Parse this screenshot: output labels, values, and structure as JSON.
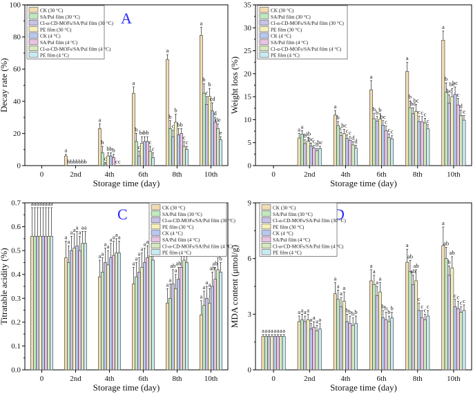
{
  "chart_data": [
    {
      "type": "bar",
      "panel_letter": "A",
      "ylabel": "Decay rate (%)",
      "xlabel": "Storage time (day)",
      "xticks": [
        "0",
        "2nd",
        "4th",
        "6th",
        "8th",
        "10th"
      ],
      "yticks": [
        "0",
        "20",
        "40",
        "60",
        "80",
        "100"
      ],
      "ylim": [
        0,
        100
      ],
      "legend_position": "top-left",
      "series": [
        {
          "name": "CK (30 °C)",
          "color": "#f2dcb3",
          "values": [
            0,
            6,
            23,
            45,
            66,
            81
          ],
          "errors": [
            0,
            1,
            3,
            4,
            3,
            5
          ],
          "letters": [
            "",
            "a",
            "a",
            "a",
            "a",
            "a"
          ]
        },
        {
          "name": "SA/Pul film (30 °C)",
          "color": "#bfe8bf",
          "values": [
            0,
            0,
            8,
            15,
            23,
            45
          ],
          "errors": [
            0,
            0,
            4,
            5,
            5,
            6
          ],
          "letters": [
            "",
            "b",
            "b",
            "b",
            "b",
            "b"
          ]
        },
        {
          "name": "Cl-α-CD-MOFs/SA/Pul film (30 °C)",
          "color": "#c8c3e6",
          "values": [
            0,
            0,
            1,
            6,
            18,
            38
          ],
          "errors": [
            0,
            0,
            1,
            3,
            4,
            5
          ],
          "letters": [
            "",
            "b",
            "c",
            "c",
            "c",
            "c"
          ]
        },
        {
          "name": "PE film (30 °C)",
          "color": "#f5f0bc",
          "values": [
            0,
            0,
            6,
            14,
            27,
            43
          ],
          "errors": [
            0,
            0,
            2,
            4,
            5,
            5
          ],
          "letters": [
            "",
            "b",
            "b",
            "bc",
            "b",
            "b"
          ]
        },
        {
          "name": "CK (4 °C)",
          "color": "#b8c7ee",
          "values": [
            0,
            0,
            6,
            15,
            19,
            34
          ],
          "errors": [
            0,
            0,
            2,
            3,
            4,
            5
          ],
          "letters": [
            "",
            "b",
            "b",
            "b",
            "b",
            "cd"
          ]
        },
        {
          "name": "SA/Pul film (4 °C)",
          "color": "#e9c3e3",
          "values": [
            0,
            0,
            5,
            15,
            20,
            27
          ],
          "errors": [
            0,
            0,
            2,
            3,
            3,
            3
          ],
          "letters": [
            "",
            "b",
            "b",
            "b",
            "b",
            "d"
          ]
        },
        {
          "name": "Cl-α-CD-MOFs/SA/Pul film (4 °C)",
          "color": "#d6e8bf",
          "values": [
            0,
            0,
            0,
            9,
            12,
            23
          ],
          "errors": [
            0,
            0,
            0,
            3,
            3,
            3
          ],
          "letters": [
            "",
            "b",
            "c",
            "c",
            "c",
            "de"
          ]
        },
        {
          "name": "PE film (4 °C)",
          "color": "#c9eaf2",
          "values": [
            0,
            0,
            0,
            5,
            10,
            16
          ],
          "errors": [
            0,
            0,
            0,
            3,
            2,
            2
          ],
          "letters": [
            "",
            "b",
            "c",
            "c",
            "c",
            "e"
          ]
        }
      ]
    },
    {
      "type": "bar",
      "panel_letter": "B",
      "ylabel": "Weight loss (%)",
      "xlabel": "Storage time (day)",
      "xticks": [
        "0",
        "2nd",
        "4th",
        "6th",
        "8th",
        "10th"
      ],
      "yticks": [
        "0",
        "5",
        "10",
        "15",
        "20",
        "25",
        "30",
        "35"
      ],
      "ylim": [
        0,
        35
      ],
      "legend_position": "top-left",
      "series": [
        {
          "name": "CK (30 °C)",
          "color": "#f2dcb3",
          "values": [
            0,
            6,
            11,
            16.5,
            20.5,
            27.3
          ],
          "errors": [
            0,
            1,
            1,
            2,
            2,
            2
          ],
          "letters": [
            "",
            "a",
            "a",
            "a",
            "a",
            "a"
          ]
        },
        {
          "name": "SA/Pul film (30 °C)",
          "color": "#bfe8bf",
          "values": [
            0,
            6.8,
            8.7,
            10.2,
            12.6,
            16
          ],
          "errors": [
            0,
            0.8,
            0.9,
            1.2,
            1.5,
            2
          ],
          "letters": [
            "",
            "a",
            "b",
            "b",
            "b",
            "b"
          ]
        },
        {
          "name": "Cl-α-CD-MOFs/SA/Pul film (30 °C)",
          "color": "#c8c3e6",
          "values": [
            0,
            4.8,
            6.5,
            9.7,
            11.3,
            13.6
          ],
          "errors": [
            0,
            0.8,
            0.8,
            1,
            1.3,
            1.8
          ],
          "letters": [
            "",
            "b",
            "c",
            "b",
            "bc",
            "bc"
          ]
        },
        {
          "name": "PE film (30 °C)",
          "color": "#f5f0bc",
          "values": [
            0,
            5.3,
            7,
            10.1,
            11.8,
            15
          ],
          "errors": [
            0,
            0.8,
            0.9,
            1.2,
            1.5,
            1.8
          ],
          "letters": [
            "",
            "ab",
            "bc",
            "b",
            "bc",
            "bc"
          ]
        },
        {
          "name": "CK (4 °C)",
          "color": "#b8c7ee",
          "values": [
            0,
            4.3,
            5.9,
            8.8,
            9.6,
            15.5
          ],
          "errors": [
            0,
            0.6,
            0.8,
            1,
            1.2,
            1.6
          ],
          "letters": [
            "",
            "bc",
            "c",
            "bc",
            "c",
            "bc"
          ]
        },
        {
          "name": "SA/Pul film (4 °C)",
          "color": "#e9c3e3",
          "values": [
            0,
            3.8,
            5.5,
            7.6,
            9.5,
            13.2
          ],
          "errors": [
            0,
            0.6,
            0.8,
            1,
            1.2,
            1.4
          ],
          "letters": [
            "",
            "c",
            "c",
            "c",
            "c",
            "c"
          ]
        },
        {
          "name": "Cl-α-CD-MOFs/SA/Pul film (4 °C)",
          "color": "#d6e8bf",
          "values": [
            0,
            3.2,
            4.5,
            6.1,
            9.3,
            10.9
          ],
          "errors": [
            0,
            0.5,
            0.7,
            0.8,
            1,
            1.2
          ],
          "letters": [
            "",
            "b",
            "d",
            "c",
            "c",
            "d"
          ]
        },
        {
          "name": "PE film (4 °C)",
          "color": "#c9eaf2",
          "values": [
            0,
            3.7,
            3.8,
            5.8,
            8,
            9.9
          ],
          "errors": [
            0,
            0.5,
            0.6,
            0.7,
            0.9,
            1
          ],
          "letters": [
            "",
            "bc",
            "d",
            "c",
            "c",
            "e"
          ]
        }
      ]
    },
    {
      "type": "bar",
      "panel_letter": "C",
      "ylabel": "Titratable acidity (%)",
      "xlabel": "Storage time (day)",
      "xticks": [
        "0",
        "2nd",
        "4th",
        "6th",
        "8th",
        "10th"
      ],
      "yticks": [
        "0.0",
        "0.1",
        "0.2",
        "0.3",
        "0.4",
        "0.5",
        "0.6",
        "0.7"
      ],
      "ylim": [
        0,
        0.7
      ],
      "legend_position": "top-right",
      "series": [
        {
          "name": "CK (30 °C)",
          "color": "#f2dcb3",
          "values": [
            0.56,
            0.47,
            0.39,
            0.36,
            0.28,
            0.23
          ],
          "errors": [
            0.12,
            0.07,
            0.07,
            0.07,
            0.06,
            0.06
          ],
          "letters": [
            "a",
            "a",
            "a",
            "a",
            "a",
            "a"
          ]
        },
        {
          "name": "SA/Pul film (30 °C)",
          "color": "#bfe8bf",
          "values": [
            0.56,
            0.45,
            0.41,
            0.39,
            0.3,
            0.27
          ],
          "errors": [
            0.12,
            0.07,
            0.06,
            0.06,
            0.06,
            0.06
          ],
          "letters": [
            "a",
            "a",
            "a",
            "a",
            "a",
            "a"
          ]
        },
        {
          "name": "Cl-α-CD-MOFs/SA/Pul film (30 °C)",
          "color": "#c8c3e6",
          "values": [
            0.56,
            0.5,
            0.45,
            0.41,
            0.36,
            0.3
          ],
          "errors": [
            0.12,
            0.06,
            0.06,
            0.06,
            0.06,
            0.05
          ],
          "letters": [
            "a",
            "a",
            "a",
            "a",
            "ab",
            "a"
          ]
        },
        {
          "name": "PE film (30 °C)",
          "color": "#f5f0bc",
          "values": [
            0.56,
            0.51,
            0.44,
            0.43,
            0.34,
            0.28
          ],
          "errors": [
            0.12,
            0.06,
            0.06,
            0.06,
            0.06,
            0.06
          ],
          "letters": [
            "a",
            "a",
            "a",
            "a",
            "a",
            "a"
          ]
        },
        {
          "name": "CK (4 °C)",
          "color": "#b8c7ee",
          "values": [
            0.56,
            0.52,
            0.47,
            0.45,
            0.38,
            0.35
          ],
          "errors": [
            0.12,
            0.06,
            0.06,
            0.06,
            0.05,
            0.06
          ],
          "letters": [
            "a",
            "a",
            "a",
            "a",
            "ab",
            "ab"
          ]
        },
        {
          "name": "SA/Pul film (4 °C)",
          "color": "#e9c3e3",
          "values": [
            0.56,
            0.5,
            0.48,
            0.47,
            0.43,
            0.38
          ],
          "errors": [
            0.12,
            0.06,
            0.06,
            0.05,
            0.05,
            0.05
          ],
          "letters": [
            "a",
            "a",
            "a",
            "a",
            "ab",
            "ab"
          ]
        },
        {
          "name": "Cl-α-CD-MOFs/SA/Pul film (4 °C)",
          "color": "#d6e8bf",
          "values": [
            0.56,
            0.53,
            0.49,
            0.48,
            0.46,
            0.42
          ],
          "errors": [
            0.12,
            0.05,
            0.06,
            0.05,
            0.05,
            0.05
          ],
          "letters": [
            "a",
            "a",
            "a",
            "a",
            "a",
            "ab"
          ]
        },
        {
          "name": "PE film (4 °C)",
          "color": "#c9eaf2",
          "values": [
            0.56,
            0.53,
            0.49,
            0.46,
            0.45,
            0.41
          ],
          "errors": [
            0.12,
            0.05,
            0.05,
            0.05,
            0.05,
            0.04
          ],
          "letters": [
            "a",
            "a",
            "a",
            "a",
            "a",
            "b"
          ]
        }
      ]
    },
    {
      "type": "bar",
      "panel_letter": "D",
      "ylabel": "MDA content (μmol/g)",
      "xlabel": "Storage time (day)",
      "xticks": [
        "0",
        "2nd",
        "4th",
        "6th",
        "8th",
        "10th"
      ],
      "yticks": [
        "0",
        "3",
        "6",
        "9"
      ],
      "ylim": [
        0,
        9
      ],
      "legend_position": "top-right",
      "series": [
        {
          "name": "CK (30 °C)",
          "color": "#f2dcb3",
          "values": [
            1.8,
            2.6,
            4.1,
            4.8,
            5.8,
            6.7
          ],
          "errors": [
            0.1,
            0.3,
            0.6,
            0.6,
            0.7,
            1.0
          ],
          "letters": [
            "a",
            "a",
            "a",
            "a",
            "a",
            "a"
          ]
        },
        {
          "name": "SA/Pul film (30 °C)",
          "color": "#bfe8bf",
          "values": [
            1.8,
            2.7,
            3.8,
            4.6,
            5.3,
            6.0
          ],
          "errors": [
            0.1,
            0.3,
            0.5,
            0.5,
            0.6,
            0.6
          ],
          "letters": [
            "a",
            "a",
            "a",
            "a",
            "ab",
            "ab"
          ]
        },
        {
          "name": "Cl-α-CD-MOFs/SA/Pul film (30 °C)",
          "color": "#c8c3e6",
          "values": [
            1.8,
            2.6,
            3.4,
            4.0,
            4.6,
            5.1
          ],
          "errors": [
            0.1,
            0.3,
            0.5,
            0.5,
            0.5,
            0.5
          ],
          "letters": [
            "a",
            "a",
            "a",
            "a",
            "ab",
            "b"
          ]
        },
        {
          "name": "PE film (30 °C)",
          "color": "#f5f0bc",
          "values": [
            1.8,
            2.7,
            3.7,
            4.2,
            4.8,
            5.5
          ],
          "errors": [
            0.1,
            0.3,
            0.5,
            0.5,
            0.6,
            0.6
          ],
          "letters": [
            "a",
            "a",
            "a",
            "a",
            "ab",
            "ab"
          ]
        },
        {
          "name": "CK (4 °C)",
          "color": "#b8c7ee",
          "values": [
            1.8,
            2.2,
            2.6,
            2.8,
            3.2,
            3.4
          ],
          "errors": [
            0.1,
            0.3,
            0.4,
            0.4,
            0.4,
            0.4
          ],
          "letters": [
            "a",
            "a",
            "b",
            "b",
            "c",
            "c"
          ]
        },
        {
          "name": "SA/Pul film (4 °C)",
          "color": "#e9c3e3",
          "values": [
            1.8,
            2.3,
            2.5,
            2.7,
            2.8,
            3.3
          ],
          "errors": [
            0.1,
            0.3,
            0.4,
            0.4,
            0.4,
            0.4
          ],
          "letters": [
            "a",
            "a",
            "b",
            "b",
            "c",
            "c"
          ]
        },
        {
          "name": "Cl-α-CD-MOFs/SA/Pul film (4 °C)",
          "color": "#d6e8bf",
          "values": [
            1.8,
            2.1,
            2.4,
            2.6,
            2.7,
            3.1
          ],
          "errors": [
            0.1,
            0.3,
            0.4,
            0.3,
            0.3,
            0.3
          ],
          "letters": [
            "a",
            "a",
            "b",
            "b",
            "c",
            "c"
          ]
        },
        {
          "name": "PE film (4 °C)",
          "color": "#c9eaf2",
          "values": [
            1.8,
            2.2,
            2.5,
            2.8,
            2.9,
            3.2
          ],
          "errors": [
            0.1,
            0.3,
            0.4,
            0.3,
            0.3,
            0.3
          ],
          "letters": [
            "a",
            "a",
            "b",
            "b",
            "c",
            "c"
          ]
        }
      ]
    }
  ]
}
